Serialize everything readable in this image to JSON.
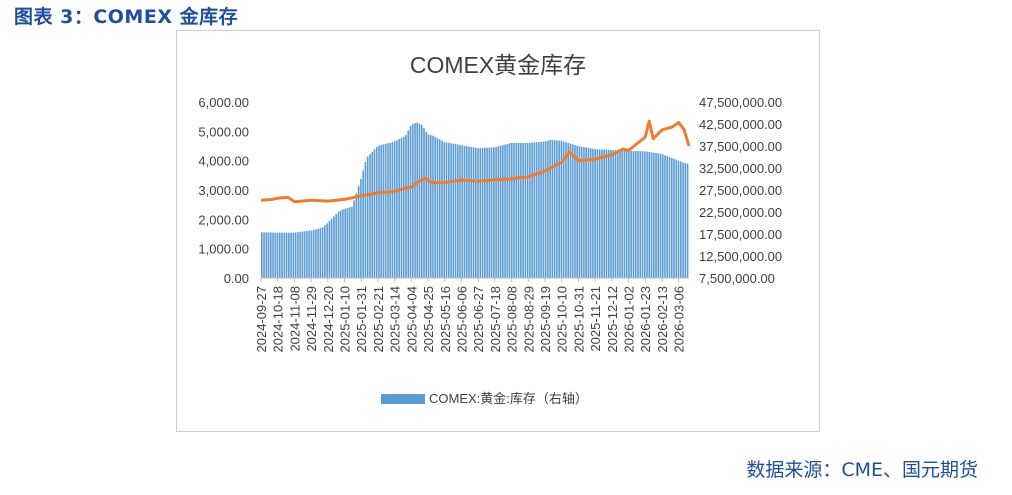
{
  "figure_caption": "图表 3：COMEX 金库存",
  "source_note": "数据来源：CME、国元期货",
  "colors": {
    "bar": "#5b9bd5",
    "line": "#ed7d31",
    "text": "#404040",
    "caption": "#1f4e9e"
  },
  "chart_data": {
    "type": "bar+line",
    "title": "COMEX黄金库存",
    "legend": {
      "position": "bottom",
      "entries": [
        "COMEX:黄金:库存（右轴）"
      ]
    },
    "y_left": {
      "min": 0,
      "max": 6000,
      "ticks": [
        "0.00",
        "1,000.00",
        "2,000.00",
        "3,000.00",
        "4,000.00",
        "5,000.00",
        "6,000.00"
      ]
    },
    "y_right": {
      "min": 7500000,
      "max": 47500000,
      "ticks": [
        "7,500,000.00",
        "12,500,000.00",
        "17,500,000.00",
        "22,500,000.00",
        "27,500,000.00",
        "32,500,000.00",
        "37,500,000.00",
        "42,500,000.00",
        "47,500,000.00"
      ]
    },
    "x_ticks": [
      "2024-09-27",
      "2024-10-18",
      "2024-11-08",
      "2024-11-29",
      "2024-12-20",
      "2025-01-10",
      "2025-01-31",
      "2025-02-21",
      "2025-03-14",
      "2025-04-04",
      "2025-04-25",
      "2025-05-16",
      "2025-06-06",
      "2025-06-27",
      "2025-07-18",
      "2025-08-08",
      "2025-08-29",
      "2025-09-19",
      "2025-10-10",
      "2025-10-31",
      "2025-11-21",
      "2025-12-12",
      "2026-01-02",
      "2026-01-23",
      "2026-02-13",
      "2026-03-06"
    ],
    "series": [
      {
        "name": "COMEX:黄金:库存（右轴）",
        "type": "bar",
        "axis": "right",
        "x": [
          "2024-09-27",
          "2024-10-18",
          "2024-11-08",
          "2024-11-29",
          "2024-12-13",
          "2024-12-20",
          "2025-01-03",
          "2025-01-10",
          "2025-01-20",
          "2025-01-31",
          "2025-02-07",
          "2025-02-21",
          "2025-03-14",
          "2025-03-28",
          "2025-04-04",
          "2025-04-11",
          "2025-04-18",
          "2025-04-25",
          "2025-05-02",
          "2025-05-16",
          "2025-06-06",
          "2025-06-27",
          "2025-07-18",
          "2025-08-08",
          "2025-08-29",
          "2025-09-19",
          "2025-09-26",
          "2025-10-10",
          "2025-10-31",
          "2025-11-21",
          "2025-12-12",
          "2026-01-02",
          "2026-01-23",
          "2026-02-13",
          "2026-03-06",
          "2026-03-16"
        ],
        "values": [
          17900000,
          17800000,
          17800000,
          18300000,
          18900000,
          20000000,
          22600000,
          23200000,
          23700000,
          30000000,
          34800000,
          37500000,
          38500000,
          39800000,
          42300000,
          42900000,
          42200000,
          40200000,
          39800000,
          38400000,
          37700000,
          37000000,
          37200000,
          38200000,
          38200000,
          38500000,
          38900000,
          38700000,
          37500000,
          36800000,
          36600000,
          36400000,
          36300000,
          35700000,
          34200000,
          33500000
        ]
      },
      {
        "name": "",
        "type": "line",
        "axis": "left",
        "x": [
          "2024-09-27",
          "2024-10-11",
          "2024-10-18",
          "2024-10-31",
          "2024-11-08",
          "2024-11-29",
          "2024-12-20",
          "2025-01-10",
          "2025-01-31",
          "2025-02-21",
          "2025-03-14",
          "2025-03-21",
          "2025-04-04",
          "2025-04-11",
          "2025-04-22",
          "2025-04-25",
          "2025-05-02",
          "2025-05-16",
          "2025-06-06",
          "2025-06-27",
          "2025-07-18",
          "2025-08-08",
          "2025-08-29",
          "2025-09-19",
          "2025-10-10",
          "2025-10-20",
          "2025-10-31",
          "2025-11-21",
          "2025-12-12",
          "2025-12-26",
          "2026-01-02",
          "2026-01-23",
          "2026-01-28",
          "2026-02-02",
          "2026-02-13",
          "2026-02-26",
          "2026-03-06",
          "2026-03-13",
          "2026-03-19"
        ],
        "values": [
          2650,
          2680,
          2720,
          2750,
          2600,
          2650,
          2620,
          2680,
          2800,
          2900,
          2950,
          3020,
          3100,
          3250,
          3400,
          3320,
          3250,
          3250,
          3340,
          3300,
          3350,
          3380,
          3450,
          3650,
          3950,
          4300,
          4000,
          4050,
          4200,
          4400,
          4350,
          4800,
          5350,
          4750,
          5050,
          5150,
          5300,
          5050,
          4500
        ]
      }
    ]
  }
}
